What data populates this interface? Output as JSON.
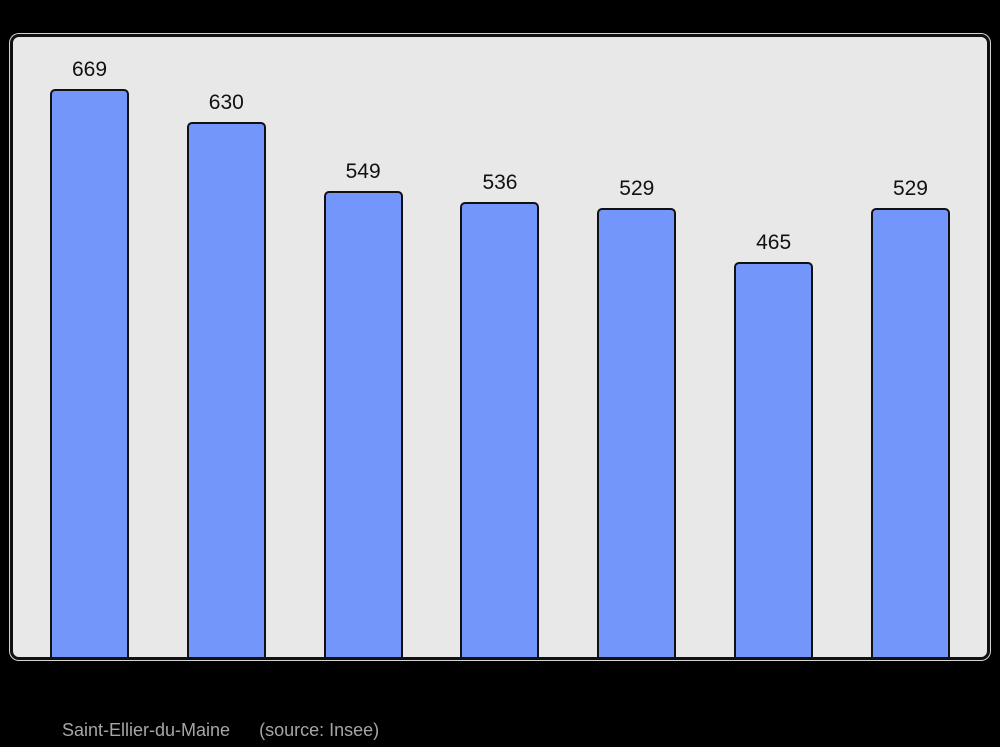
{
  "page": {
    "background": "#000000"
  },
  "chart_data": {
    "type": "bar",
    "categories": [],
    "values": [
      669,
      630,
      549,
      536,
      529,
      465,
      529
    ],
    "title": "",
    "xlabel": "",
    "ylabel": "",
    "ylim": [
      0,
      730
    ],
    "grid": false,
    "legend": false,
    "value_labels_shown": true,
    "bar_color": "#7396fa",
    "bar_border_color": "#111111",
    "plot_background": "#e8e8e8",
    "panel_border_color": "#111111",
    "value_label_color": "#111111"
  },
  "caption": {
    "title": "Saint-Ellier-du-Maine",
    "source": "(source: Insee)",
    "color": "#a6a6a6"
  }
}
